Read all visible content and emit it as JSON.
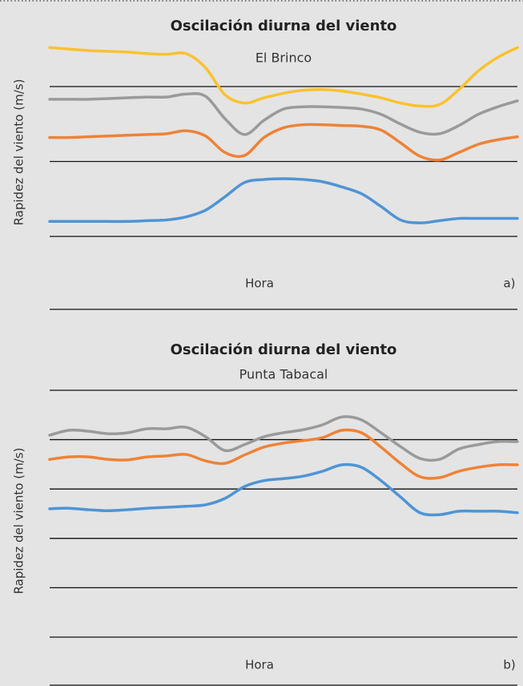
{
  "chart_data": [
    {
      "type": "line",
      "title": "Oscilación diurna del viento",
      "subtitle": "El Brinco",
      "x_label": "Hora",
      "y_label": "Rapidez del viento (m/s)",
      "annotation": "a)",
      "x": [
        0,
        1,
        2,
        3,
        4,
        5,
        6,
        7,
        8,
        9,
        10,
        11,
        12,
        13,
        14,
        15,
        16,
        17,
        18,
        19,
        20,
        21,
        22,
        23,
        24
      ],
      "xlim": [
        0,
        24
      ],
      "ylim": [
        0.5,
        3.6
      ],
      "yticks": [
        1,
        2,
        3
      ],
      "grid": true,
      "series": [
        {
          "color": "#f9c22e",
          "values": [
            3.52,
            3.5,
            3.48,
            3.47,
            3.46,
            3.44,
            3.43,
            3.44,
            3.25,
            2.89,
            2.78,
            2.85,
            2.91,
            2.95,
            2.96,
            2.94,
            2.9,
            2.85,
            2.78,
            2.74,
            2.76,
            2.96,
            3.21,
            3.39,
            3.52
          ]
        },
        {
          "color": "#9a9a9a",
          "values": [
            2.83,
            2.83,
            2.83,
            2.84,
            2.85,
            2.86,
            2.86,
            2.9,
            2.87,
            2.57,
            2.36,
            2.55,
            2.7,
            2.73,
            2.73,
            2.72,
            2.7,
            2.63,
            2.5,
            2.39,
            2.37,
            2.48,
            2.63,
            2.73,
            2.81
          ]
        },
        {
          "color": "#ef8236",
          "values": [
            2.32,
            2.32,
            2.33,
            2.34,
            2.35,
            2.36,
            2.37,
            2.41,
            2.34,
            2.12,
            2.08,
            2.32,
            2.45,
            2.49,
            2.49,
            2.48,
            2.47,
            2.42,
            2.25,
            2.07,
            2.02,
            2.12,
            2.23,
            2.29,
            2.33
          ]
        },
        {
          "color": "#4f94d4",
          "values": [
            1.2,
            1.2,
            1.2,
            1.2,
            1.2,
            1.21,
            1.22,
            1.26,
            1.35,
            1.53,
            1.72,
            1.76,
            1.77,
            1.76,
            1.73,
            1.66,
            1.57,
            1.4,
            1.22,
            1.18,
            1.21,
            1.24,
            1.24,
            1.24,
            1.24
          ]
        }
      ]
    },
    {
      "type": "line",
      "title": "Oscilación diurna del viento",
      "subtitle": "Punta Tabacal",
      "x_label": "Hora",
      "y_label": "Rapidez del viento (m/s)",
      "annotation": "b)",
      "x": [
        0,
        1,
        2,
        3,
        4,
        5,
        6,
        7,
        8,
        9,
        10,
        11,
        12,
        13,
        14,
        15,
        16,
        17,
        18,
        19,
        20,
        21,
        22,
        23,
        24
      ],
      "xlim": [
        0,
        24
      ],
      "ylim": [
        0,
        5.3
      ],
      "yticks": [
        0,
        1,
        2,
        3,
        4,
        5
      ],
      "grid": true,
      "series": [
        {
          "color": "#9a9a9a",
          "values": [
            4.09,
            4.19,
            4.17,
            4.12,
            4.14,
            4.22,
            4.22,
            4.25,
            4.06,
            3.78,
            3.9,
            4.06,
            4.14,
            4.2,
            4.3,
            4.46,
            4.4,
            4.14,
            3.86,
            3.62,
            3.6,
            3.81,
            3.9,
            3.96,
            3.96
          ]
        },
        {
          "color": "#ef8236",
          "values": [
            3.6,
            3.65,
            3.65,
            3.6,
            3.59,
            3.65,
            3.67,
            3.7,
            3.57,
            3.52,
            3.69,
            3.85,
            3.93,
            3.98,
            4.04,
            4.19,
            4.14,
            3.85,
            3.52,
            3.25,
            3.23,
            3.36,
            3.44,
            3.49,
            3.49
          ]
        },
        {
          "color": "#4f94d4",
          "values": [
            2.6,
            2.61,
            2.58,
            2.56,
            2.58,
            2.61,
            2.63,
            2.65,
            2.68,
            2.81,
            3.05,
            3.17,
            3.21,
            3.26,
            3.36,
            3.49,
            3.44,
            3.17,
            2.84,
            2.52,
            2.48,
            2.55,
            2.55,
            2.55,
            2.52
          ]
        }
      ]
    }
  ]
}
